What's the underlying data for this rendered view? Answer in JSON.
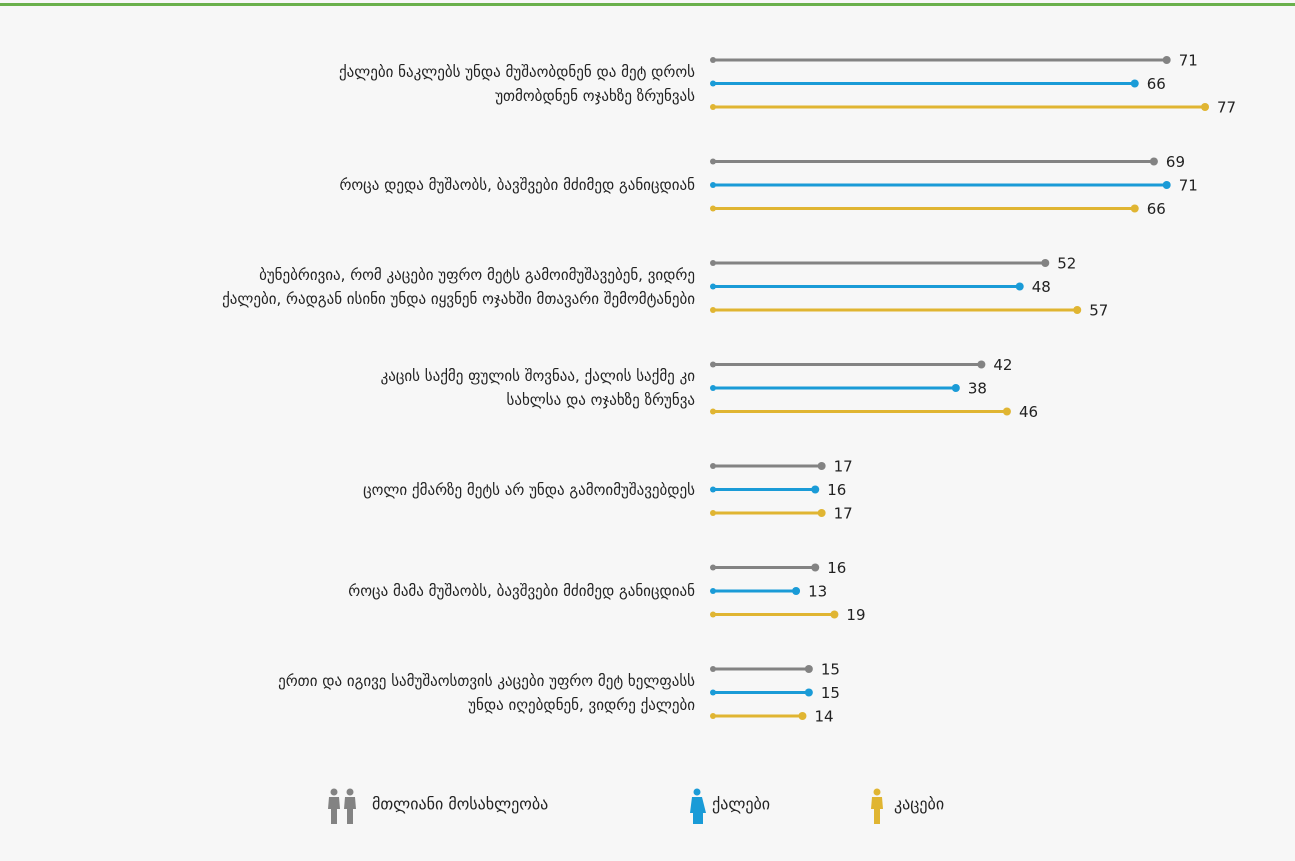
{
  "chart_data": {
    "type": "lollipop",
    "categories": [
      "ქალები ნაკლებს უნდა მუშაობდნენ და მეტ დროს\nუთმობდნენ ოჯახზე ზრუნვას",
      "როცა დედა მუშაობს, ბავშვები მძიმედ განიცდიან",
      "ბუნებრივია, რომ კაცები უფრო მეტს გამოიმუშავებენ, ვიდრე\nქალები, რადგან ისინი უნდა იყვნენ ოჯახში მთავარი შემომტანები",
      "კაცის საქმე ფულის შოვნაა, ქალის საქმე კი\nსახლსა და ოჯახზე ზრუნვა",
      "ცოლი ქმარზე მეტს არ უნდა გამოიმუშავებდეს",
      "როცა მამა მუშაობს, ბავშვები მძიმედ განიცდიან",
      "ერთი და იგივე სამუშაოსთვის კაცები უფრო მეტ ხელფასს\nუნდა იღებდნენ, ვიდრე ქალები"
    ],
    "series": [
      {
        "name": "მთლიანი მოსახლეობა",
        "color": "#838383",
        "values": [
          71,
          69,
          52,
          42,
          17,
          16,
          15
        ]
      },
      {
        "name": "ქალები",
        "color": "#1a9bd7",
        "values": [
          66,
          71,
          48,
          38,
          16,
          13,
          15
        ]
      },
      {
        "name": "კაცები",
        "color": "#e0b532",
        "values": [
          77,
          66,
          57,
          46,
          17,
          19,
          14
        ]
      }
    ],
    "xlim": [
      0,
      100
    ]
  }
}
